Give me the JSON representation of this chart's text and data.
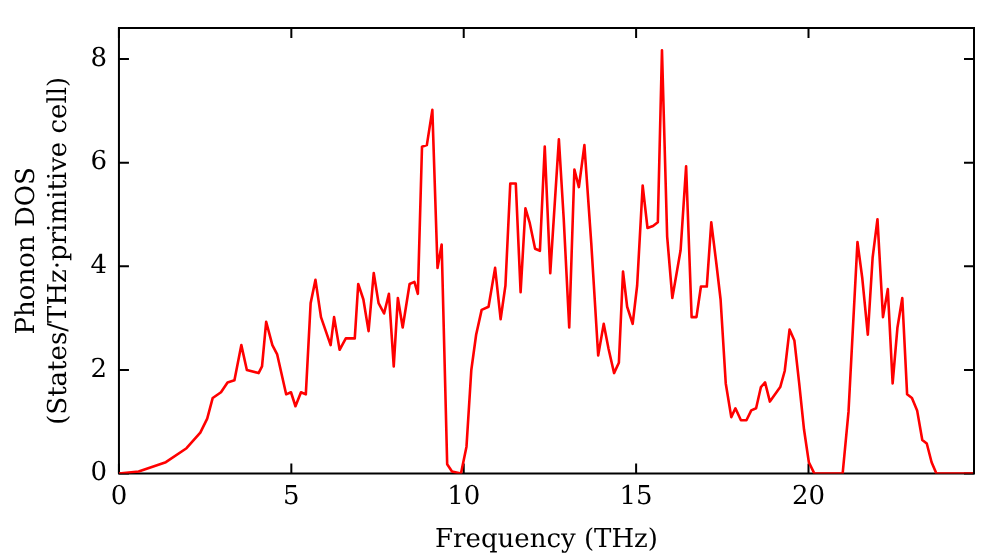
{
  "chart_data": {
    "type": "line",
    "xlabel": "Frequency (THz)",
    "ylabel": "Phonon DOS\n(States/THz·primitive cell)",
    "xlim": [
      0,
      24.8
    ],
    "ylim": [
      0,
      8.6
    ],
    "xticks": [
      0,
      5,
      10,
      15,
      20
    ],
    "yticks": [
      0,
      2,
      4,
      6,
      8
    ],
    "grid": false,
    "legend": false,
    "marker": "none",
    "line_style": "solid",
    "series": [
      {
        "color": "#ff0000",
        "x": [
          0,
          0.57,
          1.36,
          1.96,
          2.36,
          2.56,
          2.72,
          2.96,
          3.15,
          3.35,
          3.55,
          3.71,
          4.05,
          4.15,
          4.27,
          4.45,
          4.59,
          4.85,
          4.99,
          5.12,
          5.28,
          5.42,
          5.56,
          5.7,
          5.86,
          6.14,
          6.24,
          6.4,
          6.58,
          6.84,
          6.94,
          7.09,
          7.24,
          7.39,
          7.53,
          7.69,
          7.83,
          7.97,
          8.09,
          8.23,
          8.43,
          8.57,
          8.67,
          8.79,
          8.93,
          9.09,
          9.24,
          9.36,
          9.52,
          9.66,
          9.92,
          10.08,
          10.22,
          10.36,
          10.52,
          10.72,
          10.91,
          11.07,
          11.21,
          11.35,
          11.51,
          11.65,
          11.79,
          11.91,
          12.07,
          12.21,
          12.35,
          12.51,
          12.76,
          12.9,
          13.06,
          13.21,
          13.34,
          13.5,
          13.7,
          13.9,
          14.06,
          14.2,
          14.36,
          14.5,
          14.62,
          14.74,
          14.9,
          15.03,
          15.19,
          15.33,
          15.49,
          15.63,
          15.75,
          15.9,
          16.05,
          16.29,
          16.45,
          16.61,
          16.75,
          16.88,
          17.05,
          17.18,
          17.33,
          17.45,
          17.6,
          17.76,
          17.88,
          18.04,
          18.2,
          18.34,
          18.48,
          18.62,
          18.74,
          18.88,
          19.03,
          19.18,
          19.31,
          19.45,
          19.59,
          19.73,
          19.87,
          20.01,
          20.17,
          20.99,
          21.16,
          21.42,
          21.56,
          21.72,
          21.86,
          22.0,
          22.16,
          22.3,
          22.44,
          22.58,
          22.72,
          22.86,
          23.0,
          23.15,
          23.3,
          23.43,
          23.57,
          23.71,
          24.77
        ],
        "values": [
          0,
          0.04,
          0.22,
          0.49,
          0.79,
          1.06,
          1.46,
          1.57,
          1.76,
          1.8,
          2.48,
          2.0,
          1.94,
          2.07,
          2.93,
          2.48,
          2.3,
          1.53,
          1.57,
          1.3,
          1.57,
          1.53,
          3.29,
          3.74,
          3.02,
          2.48,
          3.02,
          2.39,
          2.61,
          2.61,
          3.66,
          3.36,
          2.75,
          3.87,
          3.29,
          3.09,
          3.47,
          2.07,
          3.39,
          2.82,
          3.66,
          3.7,
          3.47,
          6.31,
          6.34,
          7.02,
          3.97,
          4.42,
          0.18,
          0.04,
          0,
          0.52,
          2.0,
          2.68,
          3.16,
          3.22,
          3.97,
          2.98,
          3.63,
          5.6,
          5.6,
          3.5,
          5.12,
          4.85,
          4.34,
          4.3,
          6.31,
          3.87,
          6.45,
          4.92,
          2.82,
          5.87,
          5.53,
          6.34,
          4.44,
          2.28,
          2.89,
          2.41,
          1.94,
          2.14,
          3.9,
          3.22,
          2.89,
          3.63,
          5.56,
          4.74,
          4.78,
          4.85,
          8.17,
          4.58,
          3.39,
          4.31,
          5.93,
          3.02,
          3.02,
          3.61,
          3.61,
          4.85,
          4.04,
          3.36,
          1.74,
          1.09,
          1.26,
          1.03,
          1.03,
          1.22,
          1.26,
          1.67,
          1.76,
          1.39,
          1.53,
          1.67,
          1.98,
          2.78,
          2.57,
          1.74,
          0.85,
          0.22,
          0,
          0,
          1.19,
          4.47,
          3.77,
          2.68,
          4.17,
          4.91,
          3.02,
          3.56,
          1.74,
          2.82,
          3.39,
          1.53,
          1.46,
          1.22,
          0.65,
          0.58,
          0.22,
          0,
          0
        ]
      }
    ]
  }
}
